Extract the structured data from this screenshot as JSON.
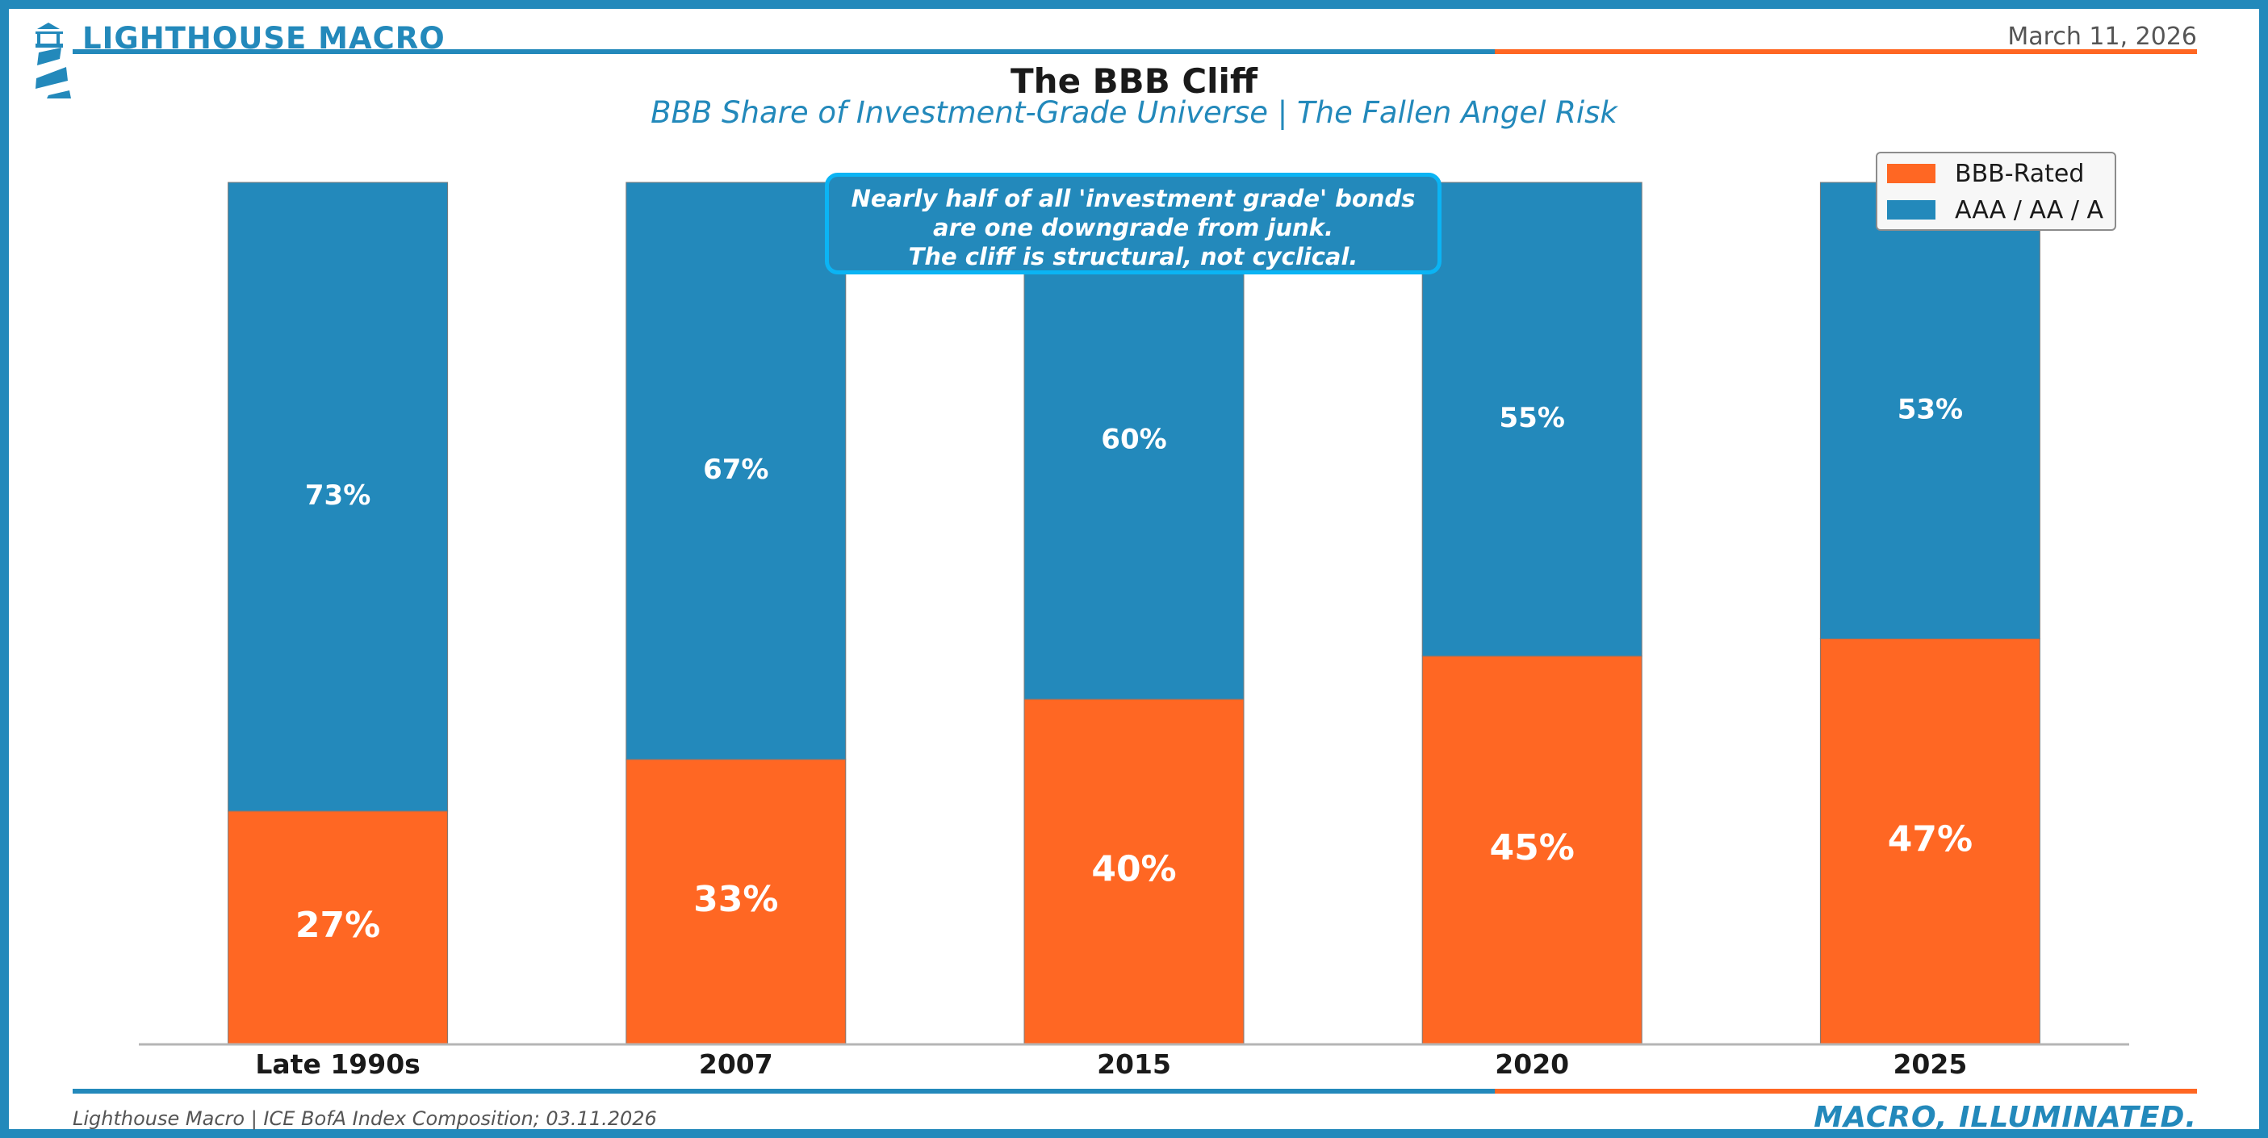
{
  "header": {
    "brand": "LIGHTHOUSE MACRO",
    "date": "March 11, 2026"
  },
  "colors": {
    "brand_blue": "#2389BB",
    "accent_orange": "#FF6723",
    "callout_border": "#0BB4F4"
  },
  "icons": {
    "logo": "lighthouse-icon"
  },
  "chart_data": {
    "type": "bar",
    "stacked": true,
    "title": "The BBB Cliff",
    "subtitle": "BBB Share of Investment-Grade Universe | The Fallen Angel Risk",
    "categories": [
      "Late 1990s",
      "2007",
      "2015",
      "2020",
      "2025"
    ],
    "series": [
      {
        "name": "BBB-Rated",
        "color": "#FF6723",
        "values": [
          27,
          33,
          40,
          45,
          47
        ],
        "labels": [
          "27%",
          "33%",
          "40%",
          "45%",
          "47%"
        ]
      },
      {
        "name": "AAA / AA / A",
        "color": "#2389BB",
        "values": [
          73,
          67,
          60,
          55,
          53
        ],
        "labels": [
          "73%",
          "67%",
          "60%",
          "55%",
          "53%"
        ]
      }
    ],
    "ylim": [
      0,
      100
    ],
    "xlabel": "",
    "ylabel": "",
    "legend_position": "top-right",
    "annotation": {
      "lines": [
        "Nearly half of all 'investment grade' bonds",
        "are one downgrade from junk.",
        "The cliff is structural, not cyclical."
      ]
    }
  },
  "footer": {
    "source": "Lighthouse Macro | ICE BofA Index Composition; 03.11.2026",
    "tagline": "MACRO, ILLUMINATED."
  }
}
